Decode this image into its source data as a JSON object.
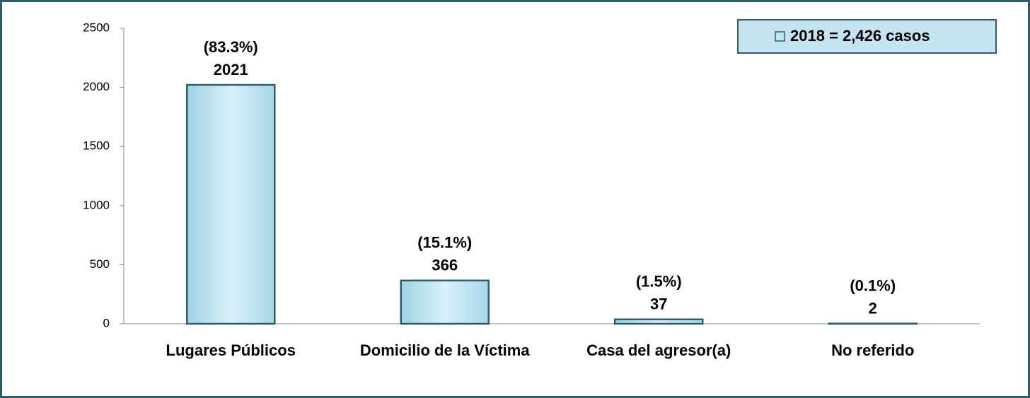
{
  "chart_data": {
    "type": "bar",
    "categories": [
      "Lugares Públicos",
      "Domicilio de la Víctima",
      "Casa del agresor(a)",
      "No referido"
    ],
    "series": [
      {
        "name": "2018 = 2,426 casos",
        "color": "#bfe5f1",
        "values": [
          2021,
          366,
          37,
          2
        ]
      }
    ],
    "percent_labels": [
      "(83.3%)",
      "(15.1%)",
      "(1.5%)",
      "(0.1%)"
    ],
    "ylim": [
      0,
      2500
    ],
    "yticks": [
      0,
      500,
      1000,
      1500,
      2000,
      2500
    ],
    "grid": false,
    "legend": "top-right"
  }
}
